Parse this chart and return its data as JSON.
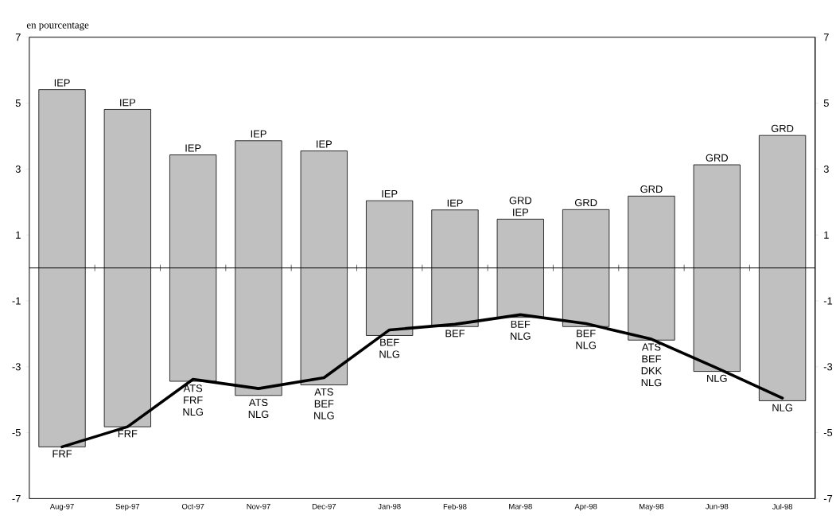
{
  "chart_data": {
    "type": "bar",
    "ylabel": "en pourcentage",
    "categories": [
      "Aug-97",
      "Sep-97",
      "Oct-97",
      "Nov-97",
      "Dec-97",
      "Jan-98",
      "Feb-98",
      "Mar-98",
      "Apr-98",
      "May-98",
      "Jun-98",
      "Jul-98"
    ],
    "series": [
      {
        "color": "#c0c0c0",
        "base": [
          -5.43,
          -4.82,
          -3.44,
          -3.87,
          -3.55,
          -2.05,
          -1.78,
          -1.5,
          -1.78,
          -2.19,
          -3.14,
          -4.03
        ],
        "values": [
          10.84,
          9.63,
          6.87,
          7.73,
          7.1,
          4.09,
          3.54,
          2.98,
          3.55,
          4.37,
          6.27,
          8.05
        ]
      },
      {
        "type": "line",
        "color": "#000000",
        "values": [
          -5.43,
          -4.82,
          -3.38,
          -3.66,
          -3.33,
          -1.88,
          -1.71,
          -1.42,
          -1.69,
          -2.16,
          -3.04,
          -3.95
        ]
      }
    ],
    "ylim": [
      -7,
      7
    ],
    "yticks": [
      -7,
      -5,
      -3,
      -1,
      1,
      3,
      5,
      7
    ],
    "y2lim": [
      -7,
      7
    ],
    "y2ticks": [
      -7,
      -5,
      -3,
      -1,
      1,
      3,
      5,
      7
    ],
    "ref_lines": [
      {
        "axis": "y",
        "value": 0
      }
    ],
    "marker": "none",
    "line_style": "solid",
    "annotations": [
      {
        "text": "IEP",
        "x": "Aug-97",
        "y": 5.41
      },
      {
        "text": "IEP",
        "x": "Sep-97",
        "y": 4.81
      },
      {
        "text": "IEP",
        "x": "Oct-97",
        "y": 3.43
      },
      {
        "text": "IEP",
        "x": "Nov-97",
        "y": 3.86
      },
      {
        "text": "IEP",
        "x": "Dec-97",
        "y": 3.55
      },
      {
        "text": "IEP",
        "x": "Jan-98",
        "y": 2.04
      },
      {
        "text": "IEP",
        "x": "Feb-98",
        "y": 1.76
      },
      {
        "text": "GRD IEP",
        "x": "Mar-98",
        "y": 1.48
      },
      {
        "text": "GRD",
        "x": "Apr-98",
        "y": 1.77
      },
      {
        "text": "GRD",
        "x": "May-98",
        "y": 2.18
      },
      {
        "text": "GRD",
        "x": "Jun-98",
        "y": 3.13
      },
      {
        "text": "GRD",
        "x": "Jul-98",
        "y": 4.02
      },
      {
        "text": "FRF",
        "x": "Aug-97",
        "y": -5.43
      },
      {
        "text": "FRF",
        "x": "Sep-97",
        "y": -4.82
      },
      {
        "text": "ATS FRF NLG",
        "x": "Oct-97",
        "y": -3.44
      },
      {
        "text": "ATS NLG",
        "x": "Nov-97",
        "y": -3.87
      },
      {
        "text": "ATS BEF NLG",
        "x": "Dec-97",
        "y": -3.55
      },
      {
        "text": "BEF NLG",
        "x": "Jan-98",
        "y": -2.05
      },
      {
        "text": "BEF",
        "x": "Feb-98",
        "y": -1.78
      },
      {
        "text": "BEF NLG",
        "x": "Mar-98",
        "y": -1.5
      },
      {
        "text": "BEF NLG",
        "x": "Apr-98",
        "y": -1.78
      },
      {
        "text": "ATS BEF DKK NLG",
        "x": "May-98",
        "y": -2.19
      },
      {
        "text": "NLG",
        "x": "Jun-98",
        "y": -3.14
      },
      {
        "text": "NLG",
        "x": "Jul-98",
        "y": -4.03
      }
    ]
  }
}
